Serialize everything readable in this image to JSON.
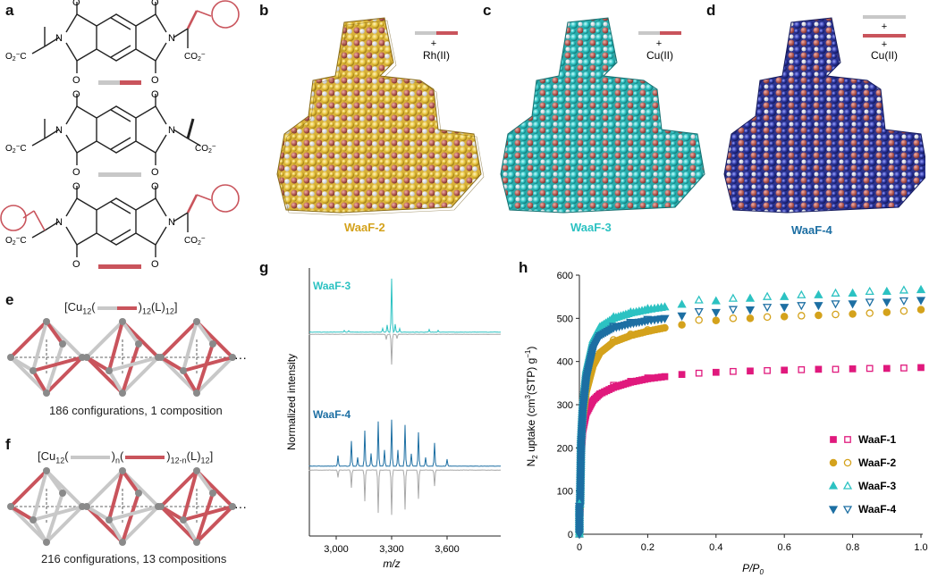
{
  "panels": {
    "a": "a",
    "b": "b",
    "c": "c",
    "d": "d",
    "e": "e",
    "f": "f",
    "g": "g",
    "h": "h"
  },
  "colors": {
    "ligand_gray": "#c8c8c8",
    "ligand_red": "#c9545c",
    "waaf1": "#e0197d",
    "waaf2": "#d4a21c",
    "waaf3": "#2cc2c2",
    "waaf4": "#1d6fa3",
    "rh": "#e6c23a",
    "cu3": "#29c0c0",
    "cu4": "#26309a"
  },
  "panel_a": {
    "atoms": {
      "O": "O",
      "N": "N",
      "co2": "CO",
      "o2c": "O",
      "sub2": "2",
      "minus": "−",
      "c": "C"
    }
  },
  "panel_b": {
    "metal_label": "Rh(II)",
    "plus": "+",
    "name": "WaaF-2"
  },
  "panel_c": {
    "metal_label": "Cu(II)",
    "plus": "+",
    "name": "WaaF-3"
  },
  "panel_d": {
    "metal_label": "Cu(II)",
    "plus_top": "+",
    "plus_bottom": "+",
    "name": "WaaF-4"
  },
  "panel_e": {
    "formula_prefix": "[Cu",
    "formula_sub1": "12",
    "formula_open": "(",
    "formula_close": ")",
    "formula_sub2": "12",
    "formula_L": "(L)",
    "formula_sub3": "12",
    "formula_end": "]",
    "ellipsis": "···",
    "caption": "186 configurations, 1 composition"
  },
  "panel_f": {
    "formula_prefix": "[Cu",
    "formula_sub1": "12",
    "formula_open": "(",
    "formula_close1": ")",
    "formula_subn": "n",
    "formula_open2": "(",
    "formula_close2": ")",
    "formula_sub12n": "12-n",
    "formula_L": "(L)",
    "formula_sub3": "12",
    "formula_end": "]",
    "ellipsis": "···",
    "caption": "216 configurations, 13 compositions"
  },
  "panel_g": {
    "ylabel": "Normalized intensity",
    "xlabel": "m/z",
    "series": [
      {
        "name": "WaaF-3"
      },
      {
        "name": "WaaF-4"
      }
    ],
    "xticks": [
      "3,000",
      "3,300",
      "3,600"
    ]
  },
  "chart_data": {
    "type": "scatter",
    "xlabel_main": "P/P",
    "xlabel_sub": "0",
    "ylabel_parts": [
      "N",
      "2",
      " uptake (cm",
      "3",
      "(STP) g",
      "−1",
      ")"
    ],
    "xlim": [
      0,
      1.0
    ],
    "ylim": [
      0,
      600
    ],
    "xticks": [
      "0",
      "0.2",
      "0.4",
      "0.6",
      "0.8",
      "1.0"
    ],
    "xtick_values": [
      0,
      0.2,
      0.4,
      0.6,
      0.8,
      1.0
    ],
    "yticks": [
      "0",
      "100",
      "200",
      "300",
      "400",
      "500",
      "600"
    ],
    "ytick_values": [
      0,
      100,
      200,
      300,
      400,
      500,
      600
    ],
    "legend_position": "bottom-right",
    "series": [
      {
        "name": "WaaF-1",
        "color": "#e0197d",
        "marker": "square",
        "adsorption": [
          [
            0.002,
            50
          ],
          [
            0.005,
            180
          ],
          [
            0.01,
            240
          ],
          [
            0.02,
            280
          ],
          [
            0.04,
            310
          ],
          [
            0.06,
            325
          ],
          [
            0.1,
            340
          ],
          [
            0.15,
            352
          ],
          [
            0.2,
            360
          ],
          [
            0.25,
            365
          ],
          [
            0.3,
            370
          ],
          [
            0.4,
            375
          ],
          [
            0.5,
            378
          ],
          [
            0.6,
            380
          ],
          [
            0.7,
            382
          ],
          [
            0.8,
            383
          ],
          [
            0.9,
            384
          ],
          [
            1.0,
            386
          ]
        ],
        "desorption": [
          [
            0.1,
            345
          ],
          [
            0.15,
            354
          ],
          [
            0.2,
            362
          ],
          [
            0.35,
            373
          ],
          [
            0.45,
            377
          ],
          [
            0.55,
            379
          ],
          [
            0.65,
            381
          ],
          [
            0.75,
            382
          ],
          [
            0.85,
            384
          ],
          [
            0.95,
            385
          ]
        ]
      },
      {
        "name": "WaaF-2",
        "color": "#d4a21c",
        "marker": "circle",
        "adsorption": [
          [
            0.002,
            60
          ],
          [
            0.005,
            200
          ],
          [
            0.01,
            270
          ],
          [
            0.02,
            330
          ],
          [
            0.04,
            390
          ],
          [
            0.06,
            420
          ],
          [
            0.1,
            445
          ],
          [
            0.15,
            460
          ],
          [
            0.2,
            470
          ],
          [
            0.25,
            478
          ],
          [
            0.3,
            485
          ],
          [
            0.4,
            495
          ],
          [
            0.5,
            500
          ],
          [
            0.6,
            504
          ],
          [
            0.7,
            507
          ],
          [
            0.8,
            510
          ],
          [
            0.9,
            514
          ],
          [
            1.0,
            520
          ]
        ],
        "desorption": [
          [
            0.1,
            450
          ],
          [
            0.15,
            463
          ],
          [
            0.2,
            473
          ],
          [
            0.35,
            496
          ],
          [
            0.45,
            500
          ],
          [
            0.55,
            503
          ],
          [
            0.65,
            506
          ],
          [
            0.75,
            509
          ],
          [
            0.85,
            512
          ],
          [
            0.95,
            517
          ]
        ]
      },
      {
        "name": "WaaF-3",
        "color": "#2cc2c2",
        "marker": "triangle-up",
        "adsorption": [
          [
            0.002,
            70
          ],
          [
            0.005,
            220
          ],
          [
            0.01,
            300
          ],
          [
            0.02,
            380
          ],
          [
            0.04,
            450
          ],
          [
            0.06,
            480
          ],
          [
            0.1,
            500
          ],
          [
            0.15,
            512
          ],
          [
            0.2,
            520
          ],
          [
            0.25,
            526
          ],
          [
            0.3,
            532
          ],
          [
            0.4,
            540
          ],
          [
            0.5,
            546
          ],
          [
            0.6,
            550
          ],
          [
            0.7,
            554
          ],
          [
            0.8,
            558
          ],
          [
            0.9,
            562
          ],
          [
            1.0,
            566
          ]
        ],
        "desorption": [
          [
            0.1,
            503
          ],
          [
            0.15,
            514
          ],
          [
            0.2,
            522
          ],
          [
            0.35,
            542
          ],
          [
            0.45,
            546
          ],
          [
            0.55,
            550
          ],
          [
            0.65,
            554
          ],
          [
            0.75,
            558
          ],
          [
            0.85,
            562
          ],
          [
            0.95,
            565
          ]
        ]
      },
      {
        "name": "WaaF-4",
        "color": "#1d6fa3",
        "marker": "triangle-down",
        "adsorption": [
          [
            0.002,
            65
          ],
          [
            0.005,
            210
          ],
          [
            0.01,
            285
          ],
          [
            0.02,
            360
          ],
          [
            0.04,
            430
          ],
          [
            0.06,
            460
          ],
          [
            0.1,
            478
          ],
          [
            0.15,
            488
          ],
          [
            0.2,
            495
          ],
          [
            0.25,
            500
          ],
          [
            0.3,
            506
          ],
          [
            0.4,
            514
          ],
          [
            0.5,
            520
          ],
          [
            0.6,
            526
          ],
          [
            0.7,
            530
          ],
          [
            0.8,
            534
          ],
          [
            0.9,
            538
          ],
          [
            1.0,
            542
          ]
        ],
        "desorption": [
          [
            0.1,
            482
          ],
          [
            0.15,
            491
          ],
          [
            0.2,
            498
          ],
          [
            0.35,
            516
          ],
          [
            0.45,
            521
          ],
          [
            0.55,
            526
          ],
          [
            0.65,
            530
          ],
          [
            0.75,
            534
          ],
          [
            0.85,
            538
          ],
          [
            0.95,
            541
          ]
        ]
      }
    ]
  }
}
